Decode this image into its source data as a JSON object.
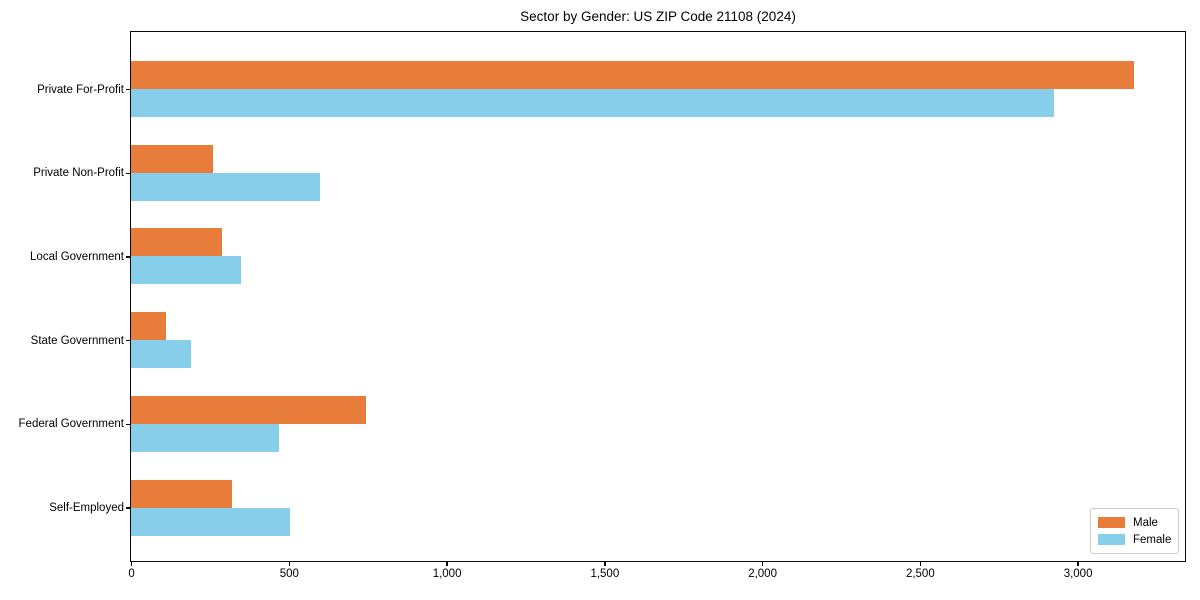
{
  "chart_data": {
    "type": "bar",
    "orientation": "horizontal",
    "title": "Sector by Gender: US ZIP Code 21108 (2024)",
    "categories": [
      "Private For-Profit",
      "Private Non-Profit",
      "Local Government",
      "State Government",
      "Federal Government",
      "Self-Employed"
    ],
    "series": [
      {
        "name": "Male",
        "color": "#E87D3B",
        "values": [
          3180,
          260,
          290,
          110,
          745,
          320
        ]
      },
      {
        "name": "Female",
        "color": "#87CEEB",
        "values": [
          2925,
          600,
          350,
          190,
          470,
          505
        ]
      }
    ],
    "xlabel": "",
    "ylabel": "",
    "xlim": [
      0,
      3337
    ],
    "xticks": [
      0,
      500,
      1000,
      1500,
      2000,
      2500,
      3000
    ],
    "xtick_labels": [
      "0",
      "500",
      "1,000",
      "1,500",
      "2,000",
      "2,500",
      "3,000"
    ],
    "grid": false,
    "legend": {
      "position": "lower-right",
      "entries": [
        "Male",
        "Female"
      ]
    }
  }
}
